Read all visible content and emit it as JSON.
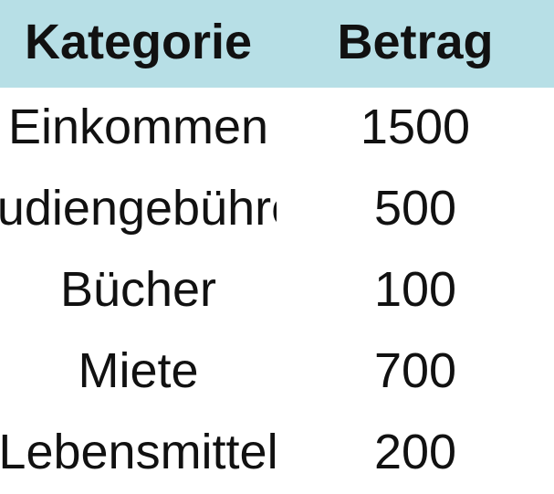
{
  "table": {
    "columns": [
      "Kategorie",
      "Betrag"
    ],
    "rows": [
      {
        "kategorie": "Einkommen",
        "betrag": "1500"
      },
      {
        "kategorie": "Studiengebühren",
        "betrag": "500"
      },
      {
        "kategorie": "Bücher",
        "betrag": "100"
      },
      {
        "kategorie": "Miete",
        "betrag": "700"
      },
      {
        "kategorie": "Lebensmittel",
        "betrag": "200"
      }
    ]
  },
  "colors": {
    "header_background": "#b7dfe6",
    "text": "#111111",
    "background": "#ffffff"
  }
}
